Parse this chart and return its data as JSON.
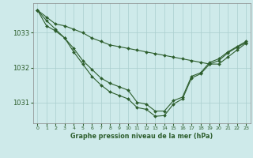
{
  "title": "Graphe pression niveau de la mer (hPa)",
  "bg_color": "#ceeaea",
  "grid_color": "#aacece",
  "line_color": "#2d5e2d",
  "xlim": [
    -0.5,
    23.5
  ],
  "ylim": [
    1030.4,
    1033.85
  ],
  "yticks": [
    1031,
    1032,
    1033
  ],
  "xticks": [
    0,
    1,
    2,
    3,
    4,
    5,
    6,
    7,
    8,
    9,
    10,
    11,
    12,
    13,
    14,
    15,
    16,
    17,
    18,
    19,
    20,
    21,
    22,
    23
  ],
  "series1": [
    1033.65,
    1033.45,
    1033.25,
    1033.2,
    1033.1,
    1033.0,
    1032.85,
    1032.75,
    1032.65,
    1032.6,
    1032.55,
    1032.5,
    1032.45,
    1032.4,
    1032.35,
    1032.3,
    1032.25,
    1032.2,
    1032.15,
    1032.1,
    1032.1,
    1032.3,
    1032.5,
    1032.7
  ],
  "series2": [
    1033.65,
    1033.35,
    1033.1,
    1032.85,
    1032.55,
    1032.2,
    1031.95,
    1031.7,
    1031.55,
    1031.45,
    1031.35,
    1031.0,
    1030.95,
    1030.75,
    1030.75,
    1031.05,
    1031.15,
    1031.75,
    1031.85,
    1032.15,
    1032.25,
    1032.45,
    1032.6,
    1032.75
  ],
  "series3": [
    1033.65,
    1033.2,
    1033.05,
    1032.85,
    1032.45,
    1032.1,
    1031.75,
    1031.5,
    1031.3,
    1031.2,
    1031.1,
    1030.85,
    1030.8,
    1030.6,
    1030.62,
    1030.95,
    1031.1,
    1031.7,
    1031.82,
    1032.1,
    1032.2,
    1032.42,
    1032.58,
    1032.72
  ]
}
